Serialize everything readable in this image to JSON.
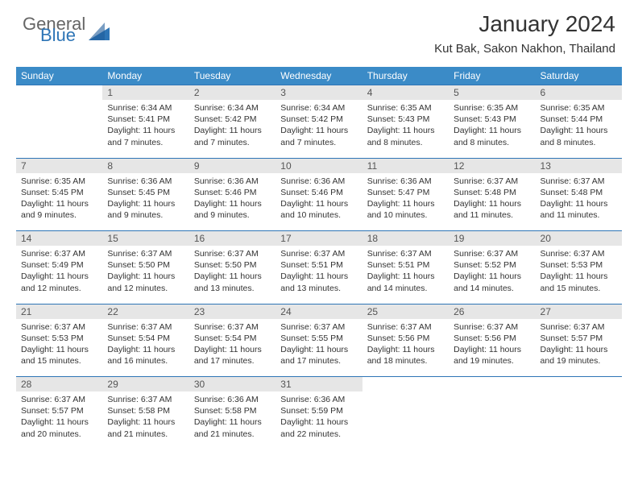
{
  "branding": {
    "text_general": "General",
    "text_blue": "Blue",
    "triangle_color": "#2e75b6"
  },
  "header": {
    "month_title": "January 2024",
    "location": "Kut Bak, Sakon Nakhon, Thailand"
  },
  "colors": {
    "header_bg": "#3b8bc7",
    "header_text": "#ffffff",
    "daynum_bg": "#e6e6e6",
    "daynum_text": "#555555",
    "border_accent": "#2e75b6",
    "body_text": "#333333"
  },
  "weekdays": [
    "Sunday",
    "Monday",
    "Tuesday",
    "Wednesday",
    "Thursday",
    "Friday",
    "Saturday"
  ],
  "weeks": [
    {
      "nums": [
        "",
        "1",
        "2",
        "3",
        "4",
        "5",
        "6"
      ],
      "cells": [
        [],
        [
          "Sunrise: 6:34 AM",
          "Sunset: 5:41 PM",
          "Daylight: 11 hours",
          "and 7 minutes."
        ],
        [
          "Sunrise: 6:34 AM",
          "Sunset: 5:42 PM",
          "Daylight: 11 hours",
          "and 7 minutes."
        ],
        [
          "Sunrise: 6:34 AM",
          "Sunset: 5:42 PM",
          "Daylight: 11 hours",
          "and 7 minutes."
        ],
        [
          "Sunrise: 6:35 AM",
          "Sunset: 5:43 PM",
          "Daylight: 11 hours",
          "and 8 minutes."
        ],
        [
          "Sunrise: 6:35 AM",
          "Sunset: 5:43 PM",
          "Daylight: 11 hours",
          "and 8 minutes."
        ],
        [
          "Sunrise: 6:35 AM",
          "Sunset: 5:44 PM",
          "Daylight: 11 hours",
          "and 8 minutes."
        ]
      ]
    },
    {
      "nums": [
        "7",
        "8",
        "9",
        "10",
        "11",
        "12",
        "13"
      ],
      "cells": [
        [
          "Sunrise: 6:35 AM",
          "Sunset: 5:45 PM",
          "Daylight: 11 hours",
          "and 9 minutes."
        ],
        [
          "Sunrise: 6:36 AM",
          "Sunset: 5:45 PM",
          "Daylight: 11 hours",
          "and 9 minutes."
        ],
        [
          "Sunrise: 6:36 AM",
          "Sunset: 5:46 PM",
          "Daylight: 11 hours",
          "and 9 minutes."
        ],
        [
          "Sunrise: 6:36 AM",
          "Sunset: 5:46 PM",
          "Daylight: 11 hours",
          "and 10 minutes."
        ],
        [
          "Sunrise: 6:36 AM",
          "Sunset: 5:47 PM",
          "Daylight: 11 hours",
          "and 10 minutes."
        ],
        [
          "Sunrise: 6:37 AM",
          "Sunset: 5:48 PM",
          "Daylight: 11 hours",
          "and 11 minutes."
        ],
        [
          "Sunrise: 6:37 AM",
          "Sunset: 5:48 PM",
          "Daylight: 11 hours",
          "and 11 minutes."
        ]
      ]
    },
    {
      "nums": [
        "14",
        "15",
        "16",
        "17",
        "18",
        "19",
        "20"
      ],
      "cells": [
        [
          "Sunrise: 6:37 AM",
          "Sunset: 5:49 PM",
          "Daylight: 11 hours",
          "and 12 minutes."
        ],
        [
          "Sunrise: 6:37 AM",
          "Sunset: 5:50 PM",
          "Daylight: 11 hours",
          "and 12 minutes."
        ],
        [
          "Sunrise: 6:37 AM",
          "Sunset: 5:50 PM",
          "Daylight: 11 hours",
          "and 13 minutes."
        ],
        [
          "Sunrise: 6:37 AM",
          "Sunset: 5:51 PM",
          "Daylight: 11 hours",
          "and 13 minutes."
        ],
        [
          "Sunrise: 6:37 AM",
          "Sunset: 5:51 PM",
          "Daylight: 11 hours",
          "and 14 minutes."
        ],
        [
          "Sunrise: 6:37 AM",
          "Sunset: 5:52 PM",
          "Daylight: 11 hours",
          "and 14 minutes."
        ],
        [
          "Sunrise: 6:37 AM",
          "Sunset: 5:53 PM",
          "Daylight: 11 hours",
          "and 15 minutes."
        ]
      ]
    },
    {
      "nums": [
        "21",
        "22",
        "23",
        "24",
        "25",
        "26",
        "27"
      ],
      "cells": [
        [
          "Sunrise: 6:37 AM",
          "Sunset: 5:53 PM",
          "Daylight: 11 hours",
          "and 15 minutes."
        ],
        [
          "Sunrise: 6:37 AM",
          "Sunset: 5:54 PM",
          "Daylight: 11 hours",
          "and 16 minutes."
        ],
        [
          "Sunrise: 6:37 AM",
          "Sunset: 5:54 PM",
          "Daylight: 11 hours",
          "and 17 minutes."
        ],
        [
          "Sunrise: 6:37 AM",
          "Sunset: 5:55 PM",
          "Daylight: 11 hours",
          "and 17 minutes."
        ],
        [
          "Sunrise: 6:37 AM",
          "Sunset: 5:56 PM",
          "Daylight: 11 hours",
          "and 18 minutes."
        ],
        [
          "Sunrise: 6:37 AM",
          "Sunset: 5:56 PM",
          "Daylight: 11 hours",
          "and 19 minutes."
        ],
        [
          "Sunrise: 6:37 AM",
          "Sunset: 5:57 PM",
          "Daylight: 11 hours",
          "and 19 minutes."
        ]
      ]
    },
    {
      "nums": [
        "28",
        "29",
        "30",
        "31",
        "",
        "",
        ""
      ],
      "cells": [
        [
          "Sunrise: 6:37 AM",
          "Sunset: 5:57 PM",
          "Daylight: 11 hours",
          "and 20 minutes."
        ],
        [
          "Sunrise: 6:37 AM",
          "Sunset: 5:58 PM",
          "Daylight: 11 hours",
          "and 21 minutes."
        ],
        [
          "Sunrise: 6:36 AM",
          "Sunset: 5:58 PM",
          "Daylight: 11 hours",
          "and 21 minutes."
        ],
        [
          "Sunrise: 6:36 AM",
          "Sunset: 5:59 PM",
          "Daylight: 11 hours",
          "and 22 minutes."
        ],
        [],
        [],
        []
      ]
    }
  ]
}
